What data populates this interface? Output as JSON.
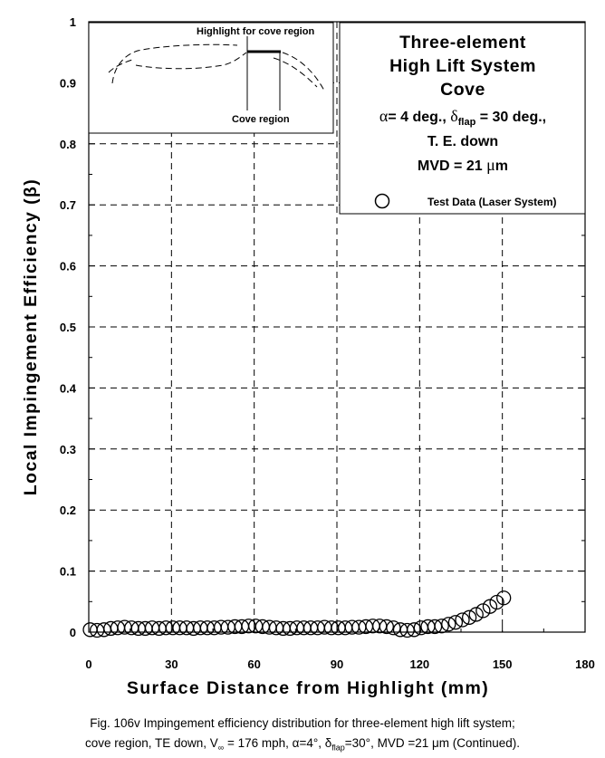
{
  "chart_data": {
    "type": "scatter",
    "xlabel": "Surface Distance from Highlight (mm)",
    "ylabel": "Local Impingement Efficiency (β)",
    "xlim": [
      0,
      180
    ],
    "ylim": [
      0,
      1
    ],
    "x_ticks": [
      0,
      30,
      60,
      90,
      120,
      150,
      180
    ],
    "y_ticks": [
      0,
      0.1,
      0.2,
      0.3,
      0.4,
      0.5,
      0.6,
      0.7,
      0.8,
      0.9,
      1
    ],
    "x_tick_labels": [
      "0",
      "30",
      "60",
      "90",
      "120",
      "150",
      "180"
    ],
    "y_tick_labels": [
      "0",
      "0.1",
      "0.2",
      "0.3",
      "0.4",
      "0.5",
      "0.6",
      "0.7",
      "0.8",
      "0.9",
      "1"
    ],
    "grid": true,
    "legend_position": "top-right",
    "series": [
      {
        "name": "Test Data (Laser System)",
        "marker": "open-circle",
        "x": [
          0.5,
          3,
          5.5,
          8,
          10.5,
          13,
          15.5,
          18,
          20.5,
          23,
          25.5,
          28,
          30.5,
          33,
          35.5,
          38,
          40.5,
          43,
          45.5,
          48,
          50.5,
          53,
          55.5,
          58,
          60.5,
          63,
          65.5,
          68,
          70.5,
          73,
          75.5,
          78,
          80.5,
          83,
          85.5,
          88,
          90.5,
          93,
          95.5,
          98,
          100.5,
          103,
          105.5,
          108,
          110.5,
          113,
          115.5,
          118,
          120.5,
          123,
          125.5,
          128,
          130.5,
          133,
          135.5,
          138,
          140.5,
          143,
          145.5,
          148,
          150.5
        ],
        "y": [
          0.004,
          0.003,
          0.004,
          0.006,
          0.007,
          0.008,
          0.007,
          0.006,
          0.006,
          0.007,
          0.006,
          0.007,
          0.007,
          0.007,
          0.007,
          0.006,
          0.007,
          0.007,
          0.007,
          0.008,
          0.008,
          0.009,
          0.009,
          0.01,
          0.01,
          0.009,
          0.008,
          0.007,
          0.006,
          0.006,
          0.007,
          0.007,
          0.007,
          0.007,
          0.008,
          0.007,
          0.007,
          0.007,
          0.008,
          0.008,
          0.009,
          0.01,
          0.01,
          0.009,
          0.007,
          0.004,
          0.003,
          0.004,
          0.007,
          0.009,
          0.009,
          0.01,
          0.013,
          0.016,
          0.02,
          0.024,
          0.029,
          0.035,
          0.042,
          0.049,
          0.056
        ]
      }
    ]
  },
  "legend": {
    "title_lines": [
      "Three-element",
      "High Lift System",
      "Cove"
    ],
    "params_line1": "α= 4 deg., δflap = 30 deg.,",
    "params_line2": "T. E. down",
    "params_line3": "MVD = 21 μm",
    "marker_label": "Test Data (Laser System)"
  },
  "inset": {
    "highlight_label": "Highlight for cove region",
    "cove_label": "Cove region"
  },
  "caption": {
    "line1": "Fig. 106v  Impingement efficiency distribution for three-element high lift system;",
    "line2": "cove region, TE down, V∞ = 176 mph, α=4°, δflap=30°,  MVD =21 μm (Continued)."
  }
}
